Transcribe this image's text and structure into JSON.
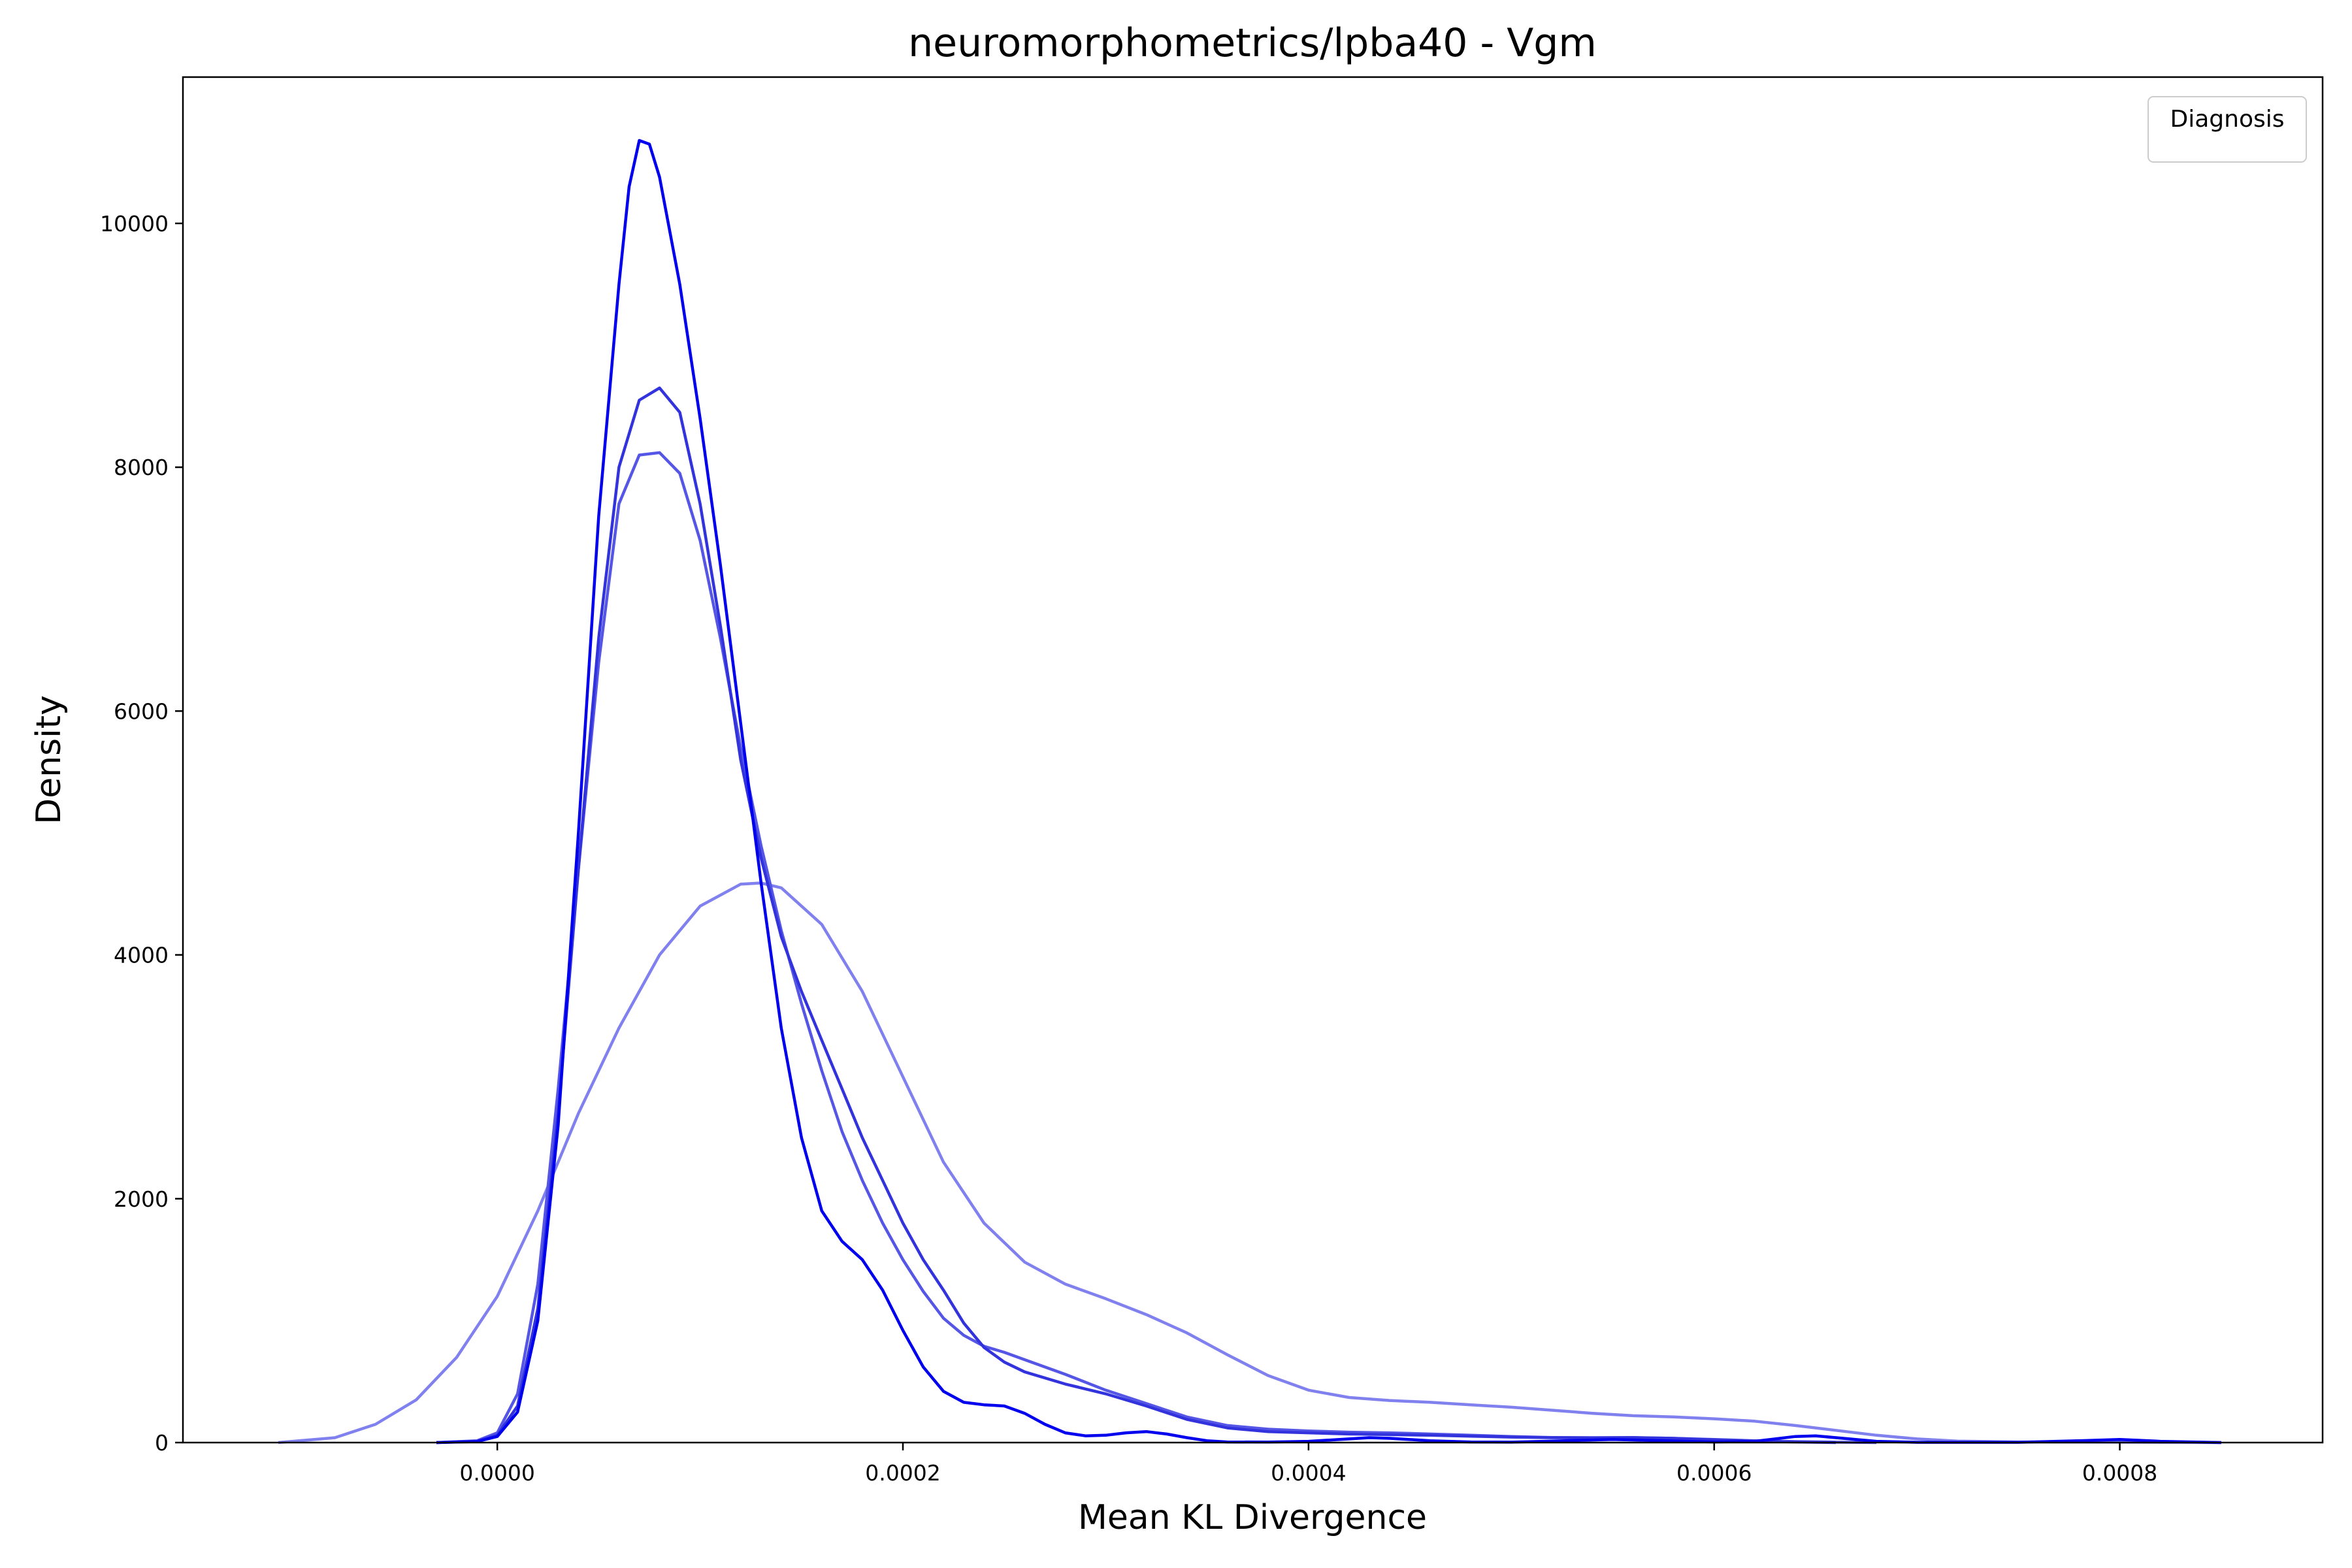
{
  "chart_data": {
    "type": "line",
    "title": "neuromorphometrics/lpba40 - Vgm",
    "xlabel": "Mean KL Divergence",
    "ylabel": "Density",
    "xlim": [
      -0.000155,
      0.0009
    ],
    "ylim": [
      0,
      11200
    ],
    "xticks": [
      0.0,
      0.0002,
      0.0004,
      0.0006,
      0.0008
    ],
    "xtick_labels": [
      "0.0000",
      "0.0002",
      "0.0004",
      "0.0006",
      "0.0008"
    ],
    "yticks": [
      0,
      2000,
      4000,
      6000,
      8000,
      10000
    ],
    "ytick_labels": [
      "0",
      "2000",
      "4000",
      "6000",
      "8000",
      "10000"
    ],
    "grid": false,
    "legend": {
      "title": "Diagnosis",
      "placement": "top-right",
      "entries": []
    },
    "series": [
      {
        "color": "#8080ee",
        "points": [
          [
            -0.000108,
            0
          ],
          [
            -8e-05,
            40
          ],
          [
            -6e-05,
            150
          ],
          [
            -4e-05,
            350
          ],
          [
            -2e-05,
            700
          ],
          [
            0.0,
            1200
          ],
          [
            2e-05,
            1900
          ],
          [
            4e-05,
            2700
          ],
          [
            6e-05,
            3400
          ],
          [
            8e-05,
            4000
          ],
          [
            0.0001,
            4400
          ],
          [
            0.00012,
            4580
          ],
          [
            0.00013,
            4590
          ],
          [
            0.00014,
            4550
          ],
          [
            0.00016,
            4250
          ],
          [
            0.00018,
            3700
          ],
          [
            0.0002,
            3000
          ],
          [
            0.00022,
            2300
          ],
          [
            0.00024,
            1800
          ],
          [
            0.00026,
            1480
          ],
          [
            0.00028,
            1300
          ],
          [
            0.0003,
            1180
          ],
          [
            0.00032,
            1050
          ],
          [
            0.00034,
            900
          ],
          [
            0.00036,
            720
          ],
          [
            0.00038,
            550
          ],
          [
            0.0004,
            430
          ],
          [
            0.00042,
            370
          ],
          [
            0.00044,
            345
          ],
          [
            0.00046,
            330
          ],
          [
            0.00048,
            310
          ],
          [
            0.0005,
            290
          ],
          [
            0.00052,
            265
          ],
          [
            0.00054,
            240
          ],
          [
            0.00056,
            220
          ],
          [
            0.00058,
            210
          ],
          [
            0.0006,
            195
          ],
          [
            0.00062,
            175
          ],
          [
            0.00064,
            140
          ],
          [
            0.00066,
            100
          ],
          [
            0.00068,
            60
          ],
          [
            0.0007,
            30
          ],
          [
            0.00072,
            12
          ],
          [
            0.00075,
            5
          ],
          [
            0.0008,
            3
          ],
          [
            0.00085,
            0
          ]
        ]
      },
      {
        "color": "#5555e6",
        "points": [
          [
            -3e-05,
            0
          ],
          [
            -1e-05,
            15
          ],
          [
            0.0,
            80
          ],
          [
            1e-05,
            400
          ],
          [
            2e-05,
            1300
          ],
          [
            3e-05,
            2900
          ],
          [
            4e-05,
            4700
          ],
          [
            5e-05,
            6400
          ],
          [
            6e-05,
            7700
          ],
          [
            7e-05,
            8100
          ],
          [
            8e-05,
            8120
          ],
          [
            9e-05,
            7950
          ],
          [
            0.0001,
            7400
          ],
          [
            0.00011,
            6600
          ],
          [
            0.00012,
            5700
          ],
          [
            0.00013,
            4900
          ],
          [
            0.00014,
            4200
          ],
          [
            0.00015,
            3600
          ],
          [
            0.00016,
            3050
          ],
          [
            0.00017,
            2550
          ],
          [
            0.00018,
            2150
          ],
          [
            0.00019,
            1800
          ],
          [
            0.0002,
            1500
          ],
          [
            0.00021,
            1240
          ],
          [
            0.00022,
            1020
          ],
          [
            0.00023,
            880
          ],
          [
            0.00024,
            790
          ],
          [
            0.00025,
            740
          ],
          [
            0.00026,
            680
          ],
          [
            0.00028,
            560
          ],
          [
            0.0003,
            430
          ],
          [
            0.00032,
            320
          ],
          [
            0.00034,
            210
          ],
          [
            0.00036,
            140
          ],
          [
            0.00038,
            110
          ],
          [
            0.0004,
            95
          ],
          [
            0.00042,
            85
          ],
          [
            0.00044,
            80
          ],
          [
            0.00046,
            70
          ],
          [
            0.00048,
            60
          ],
          [
            0.0005,
            50
          ],
          [
            0.00052,
            42
          ],
          [
            0.00054,
            40
          ],
          [
            0.00056,
            42
          ],
          [
            0.00058,
            35
          ],
          [
            0.0006,
            25
          ],
          [
            0.00062,
            15
          ],
          [
            0.00064,
            8
          ],
          [
            0.00066,
            3
          ],
          [
            0.00068,
            0
          ]
        ]
      },
      {
        "color": "#3333dd",
        "points": [
          [
            -3e-05,
            0
          ],
          [
            -1e-05,
            10
          ],
          [
            0.0,
            60
          ],
          [
            1e-05,
            300
          ],
          [
            2e-05,
            1100
          ],
          [
            3e-05,
            2700
          ],
          [
            4e-05,
            4700
          ],
          [
            5e-05,
            6600
          ],
          [
            6e-05,
            8000
          ],
          [
            7e-05,
            8550
          ],
          [
            8e-05,
            8650
          ],
          [
            9e-05,
            8450
          ],
          [
            0.0001,
            7700
          ],
          [
            0.00011,
            6700
          ],
          [
            0.00012,
            5600
          ],
          [
            0.00013,
            4800
          ],
          [
            0.00014,
            4150
          ],
          [
            0.00015,
            3700
          ],
          [
            0.00016,
            3300
          ],
          [
            0.00017,
            2900
          ],
          [
            0.00018,
            2500
          ],
          [
            0.00019,
            2150
          ],
          [
            0.0002,
            1800
          ],
          [
            0.00021,
            1500
          ],
          [
            0.00022,
            1250
          ],
          [
            0.00023,
            980
          ],
          [
            0.00024,
            780
          ],
          [
            0.00025,
            660
          ],
          [
            0.00026,
            580
          ],
          [
            0.00028,
            480
          ],
          [
            0.0003,
            400
          ],
          [
            0.00032,
            300
          ],
          [
            0.00034,
            190
          ],
          [
            0.00036,
            120
          ],
          [
            0.00038,
            90
          ],
          [
            0.0004,
            80
          ],
          [
            0.00042,
            70
          ],
          [
            0.00044,
            65
          ],
          [
            0.00046,
            60
          ],
          [
            0.00048,
            52
          ],
          [
            0.0005,
            45
          ],
          [
            0.00052,
            40
          ],
          [
            0.00054,
            38
          ],
          [
            0.00056,
            40
          ],
          [
            0.00058,
            35
          ],
          [
            0.0006,
            22
          ],
          [
            0.00062,
            12
          ],
          [
            0.00064,
            5
          ],
          [
            0.00066,
            0
          ]
        ]
      },
      {
        "color": "#0000ee",
        "points": [
          [
            -3e-05,
            0
          ],
          [
            -1e-05,
            8
          ],
          [
            0.0,
            50
          ],
          [
            1e-05,
            250
          ],
          [
            2e-05,
            1000
          ],
          [
            3e-05,
            2600
          ],
          [
            4e-05,
            5000
          ],
          [
            5e-05,
            7600
          ],
          [
            6e-05,
            9500
          ],
          [
            6.5e-05,
            10300
          ],
          [
            7e-05,
            10680
          ],
          [
            7.5e-05,
            10650
          ],
          [
            8e-05,
            10380
          ],
          [
            9e-05,
            9500
          ],
          [
            0.0001,
            8400
          ],
          [
            0.00011,
            7200
          ],
          [
            0.00012,
            5900
          ],
          [
            0.00013,
            4600
          ],
          [
            0.00014,
            3400
          ],
          [
            0.00015,
            2500
          ],
          [
            0.00016,
            1900
          ],
          [
            0.00017,
            1650
          ],
          [
            0.00018,
            1500
          ],
          [
            0.00019,
            1250
          ],
          [
            0.0002,
            920
          ],
          [
            0.00021,
            620
          ],
          [
            0.00022,
            420
          ],
          [
            0.00023,
            330
          ],
          [
            0.00024,
            310
          ],
          [
            0.00025,
            300
          ],
          [
            0.00026,
            240
          ],
          [
            0.00027,
            150
          ],
          [
            0.00028,
            80
          ],
          [
            0.00029,
            55
          ],
          [
            0.0003,
            60
          ],
          [
            0.00031,
            80
          ],
          [
            0.00032,
            90
          ],
          [
            0.00033,
            70
          ],
          [
            0.00034,
            40
          ],
          [
            0.00035,
            15
          ],
          [
            0.00036,
            5
          ],
          [
            0.00038,
            4
          ],
          [
            0.0004,
            10
          ],
          [
            0.00042,
            30
          ],
          [
            0.00043,
            40
          ],
          [
            0.00044,
            35
          ],
          [
            0.00046,
            15
          ],
          [
            0.00048,
            5
          ],
          [
            0.0005,
            3
          ],
          [
            0.00055,
            25
          ],
          [
            0.0006,
            5
          ],
          [
            0.00062,
            10
          ],
          [
            0.00064,
            50
          ],
          [
            0.00065,
            55
          ],
          [
            0.00066,
            40
          ],
          [
            0.00068,
            10
          ],
          [
            0.0007,
            2
          ],
          [
            0.00075,
            2
          ],
          [
            0.00078,
            15
          ],
          [
            0.0008,
            25
          ],
          [
            0.00082,
            10
          ],
          [
            0.00085,
            0
          ]
        ]
      }
    ]
  }
}
